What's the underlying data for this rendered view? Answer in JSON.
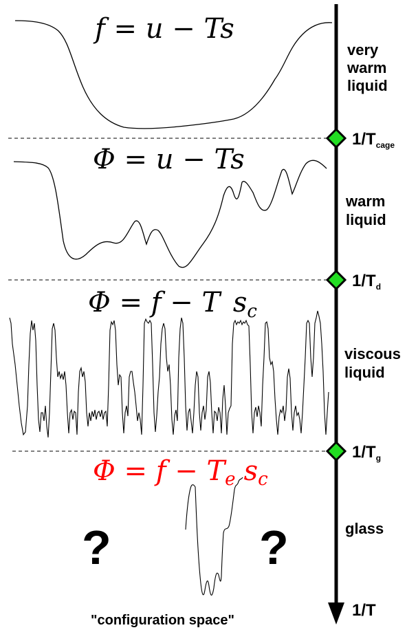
{
  "equations": {
    "very_warm": "f = u − Ts",
    "warm": "Φ = u − Ts",
    "viscous_prefix": "Φ = f − T ",
    "viscous_s": "s",
    "viscous_sub": "c",
    "glass_prefix": "Φ = f − T",
    "glass_te_sub": "e",
    "glass_s": "s",
    "glass_sc_sub": "c"
  },
  "phases": {
    "very_warm": [
      "very",
      "warm",
      "liquid"
    ],
    "warm": [
      "warm",
      "liquid"
    ],
    "viscous": [
      "viscous",
      "liquid"
    ],
    "glass": [
      "glass"
    ]
  },
  "temperatures": {
    "cage": {
      "main": "1/T",
      "sub": "cage"
    },
    "d": {
      "main": "1/T",
      "sub": "d"
    },
    "g": {
      "main": "1/T",
      "sub": "g"
    },
    "axis": "1/T"
  },
  "question_marks": [
    "?",
    "?"
  ],
  "caption": "\"configuration space\"",
  "colors": {
    "marker": "#22dd22",
    "glass_equation": "#ff0000",
    "ink": "#000000"
  }
}
